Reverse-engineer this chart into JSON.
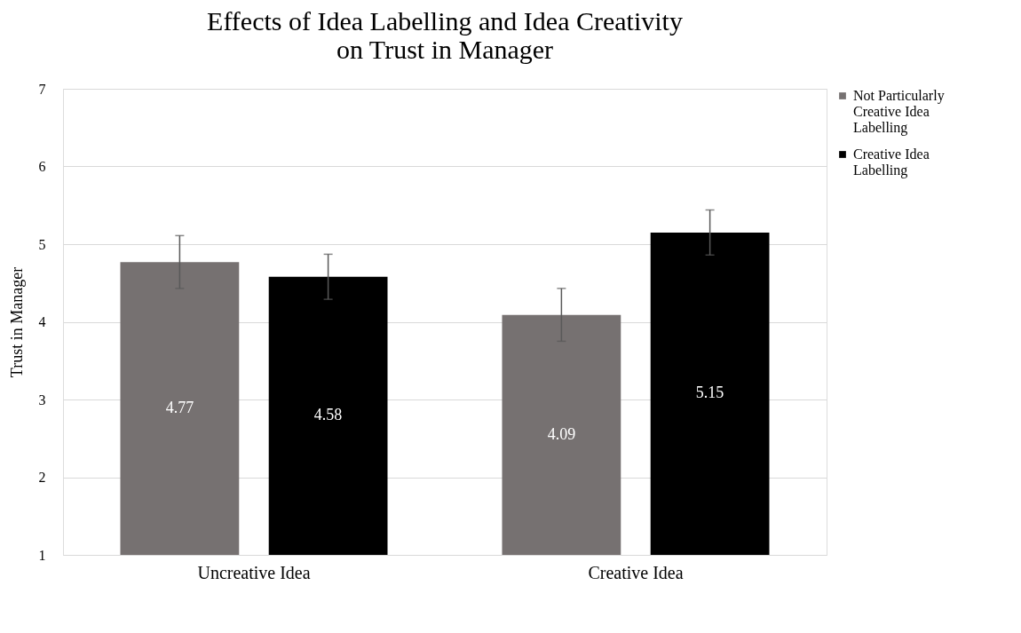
{
  "chart_data": {
    "type": "bar",
    "title": "Effects of Idea Labelling and Idea Creativity on Trust in Manager",
    "ylabel": "Trust in Manager",
    "categories": [
      "Uncreative Idea",
      "Creative Idea"
    ],
    "series": [
      {
        "name": "Not Particularly Creative Idea Labelling",
        "color": "#767171",
        "values": [
          4.77,
          4.09
        ],
        "errors": [
          0.34,
          0.34
        ]
      },
      {
        "name": "Creative Idea Labelling",
        "color": "#000000",
        "values": [
          4.58,
          5.15
        ],
        "errors": [
          0.29,
          0.29
        ]
      }
    ],
    "ylim": [
      1,
      7
    ],
    "yticks": [
      1,
      2,
      3,
      4,
      5,
      6,
      7
    ],
    "grid": "y",
    "legend": "top right",
    "data_labels": true
  }
}
